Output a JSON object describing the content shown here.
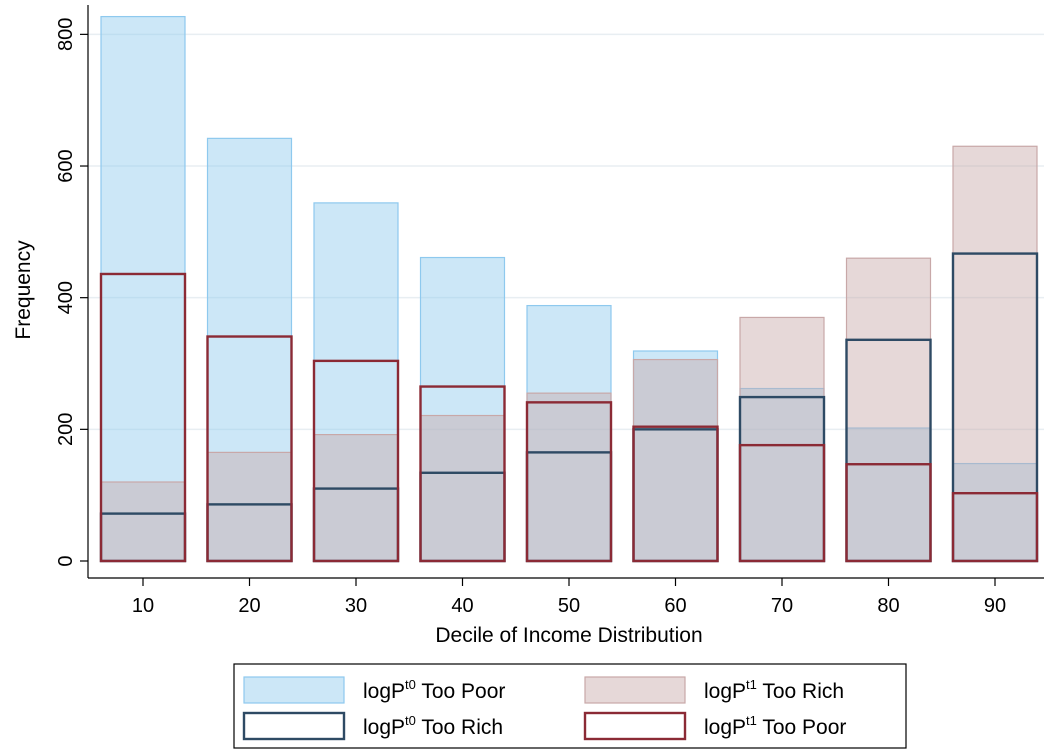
{
  "chart_data": {
    "type": "bar",
    "xlabel": "Decile of Income Distribution",
    "ylabel": "Frequency",
    "categories": [
      "10",
      "20",
      "30",
      "40",
      "50",
      "60",
      "70",
      "80",
      "90"
    ],
    "ylim": [
      0,
      820
    ],
    "yticks": [
      0,
      200,
      400,
      600,
      800
    ],
    "grid": true,
    "legend_position": "bottom",
    "series": [
      {
        "name_base": "logP",
        "name_sup": "t0",
        "name_rest": " Too Poor",
        "style": "filled",
        "color": "#8ec9ee",
        "values": [
          827,
          642,
          544,
          461,
          388,
          319,
          262,
          202,
          148
        ]
      },
      {
        "name_base": "logP",
        "name_sup": "t1",
        "name_rest": " Too Rich",
        "style": "filled",
        "color": "#c8a8a8",
        "values": [
          120,
          165,
          192,
          221,
          255,
          306,
          370,
          460,
          630
        ]
      },
      {
        "name_base": "logP",
        "name_sup": "t0",
        "name_rest": " Too Rich",
        "style": "outline",
        "color": "#2e4a64",
        "values": [
          72,
          86,
          110,
          134,
          165,
          200,
          249,
          336,
          467
        ]
      },
      {
        "name_base": "logP",
        "name_sup": "t1",
        "name_rest": " Too Poor",
        "style": "outline",
        "color": "#8b2a35",
        "values": [
          436,
          341,
          304,
          265,
          241,
          204,
          176,
          147,
          103
        ]
      }
    ]
  }
}
